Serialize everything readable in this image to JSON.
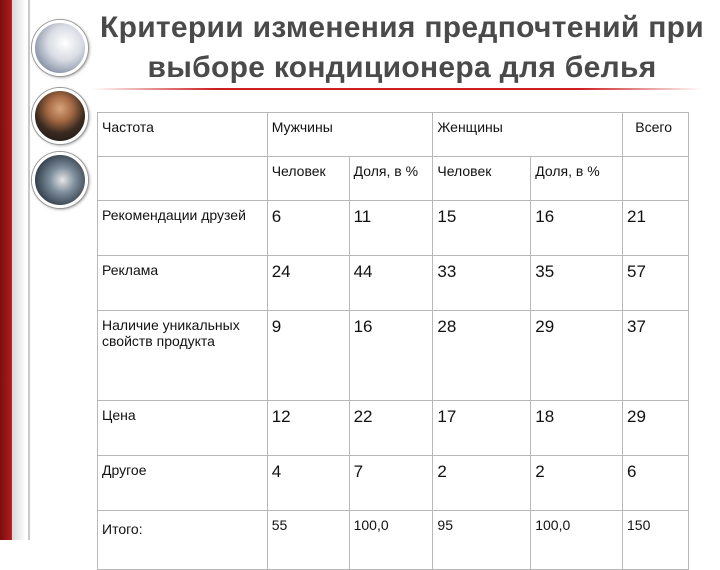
{
  "title": "Критерии изменения предпочтений при выборе кондиционера для белья",
  "table": {
    "header_row1": {
      "c1": "Частота",
      "c2": "Мужчины",
      "c3": "Женщины",
      "c4": "Всего"
    },
    "header_row2": {
      "men_count": "Человек",
      "men_share": "Доля, в %",
      "women_count": "Человек",
      "women_share": "Доля, в %"
    },
    "rows": [
      {
        "label": "Рекомендации друзей",
        "men_count": "6",
        "men_share": "11",
        "women_count": "15",
        "women_share": "16",
        "total": "21"
      },
      {
        "label": "Реклама",
        "men_count": "24",
        "men_share": "44",
        "women_count": "33",
        "women_share": "35",
        "total": "57"
      },
      {
        "label": "Наличие уникальных свойств продукта",
        "men_count": "9",
        "men_share": "16",
        "women_count": "28",
        "women_share": "29",
        "total": "37"
      },
      {
        "label": "Цена",
        "men_count": "12",
        "men_share": "22",
        "women_count": "17",
        "women_share": "18",
        "total": "29"
      },
      {
        "label": "Другое",
        "men_count": "4",
        "men_share": "7",
        "women_count": "2",
        "women_share": "2",
        "total": "6"
      },
      {
        "label": "Итого:",
        "men_count": "55",
        "men_share": "100,0",
        "women_count": "95",
        "women_share": "100,0",
        "total": "150"
      }
    ]
  }
}
